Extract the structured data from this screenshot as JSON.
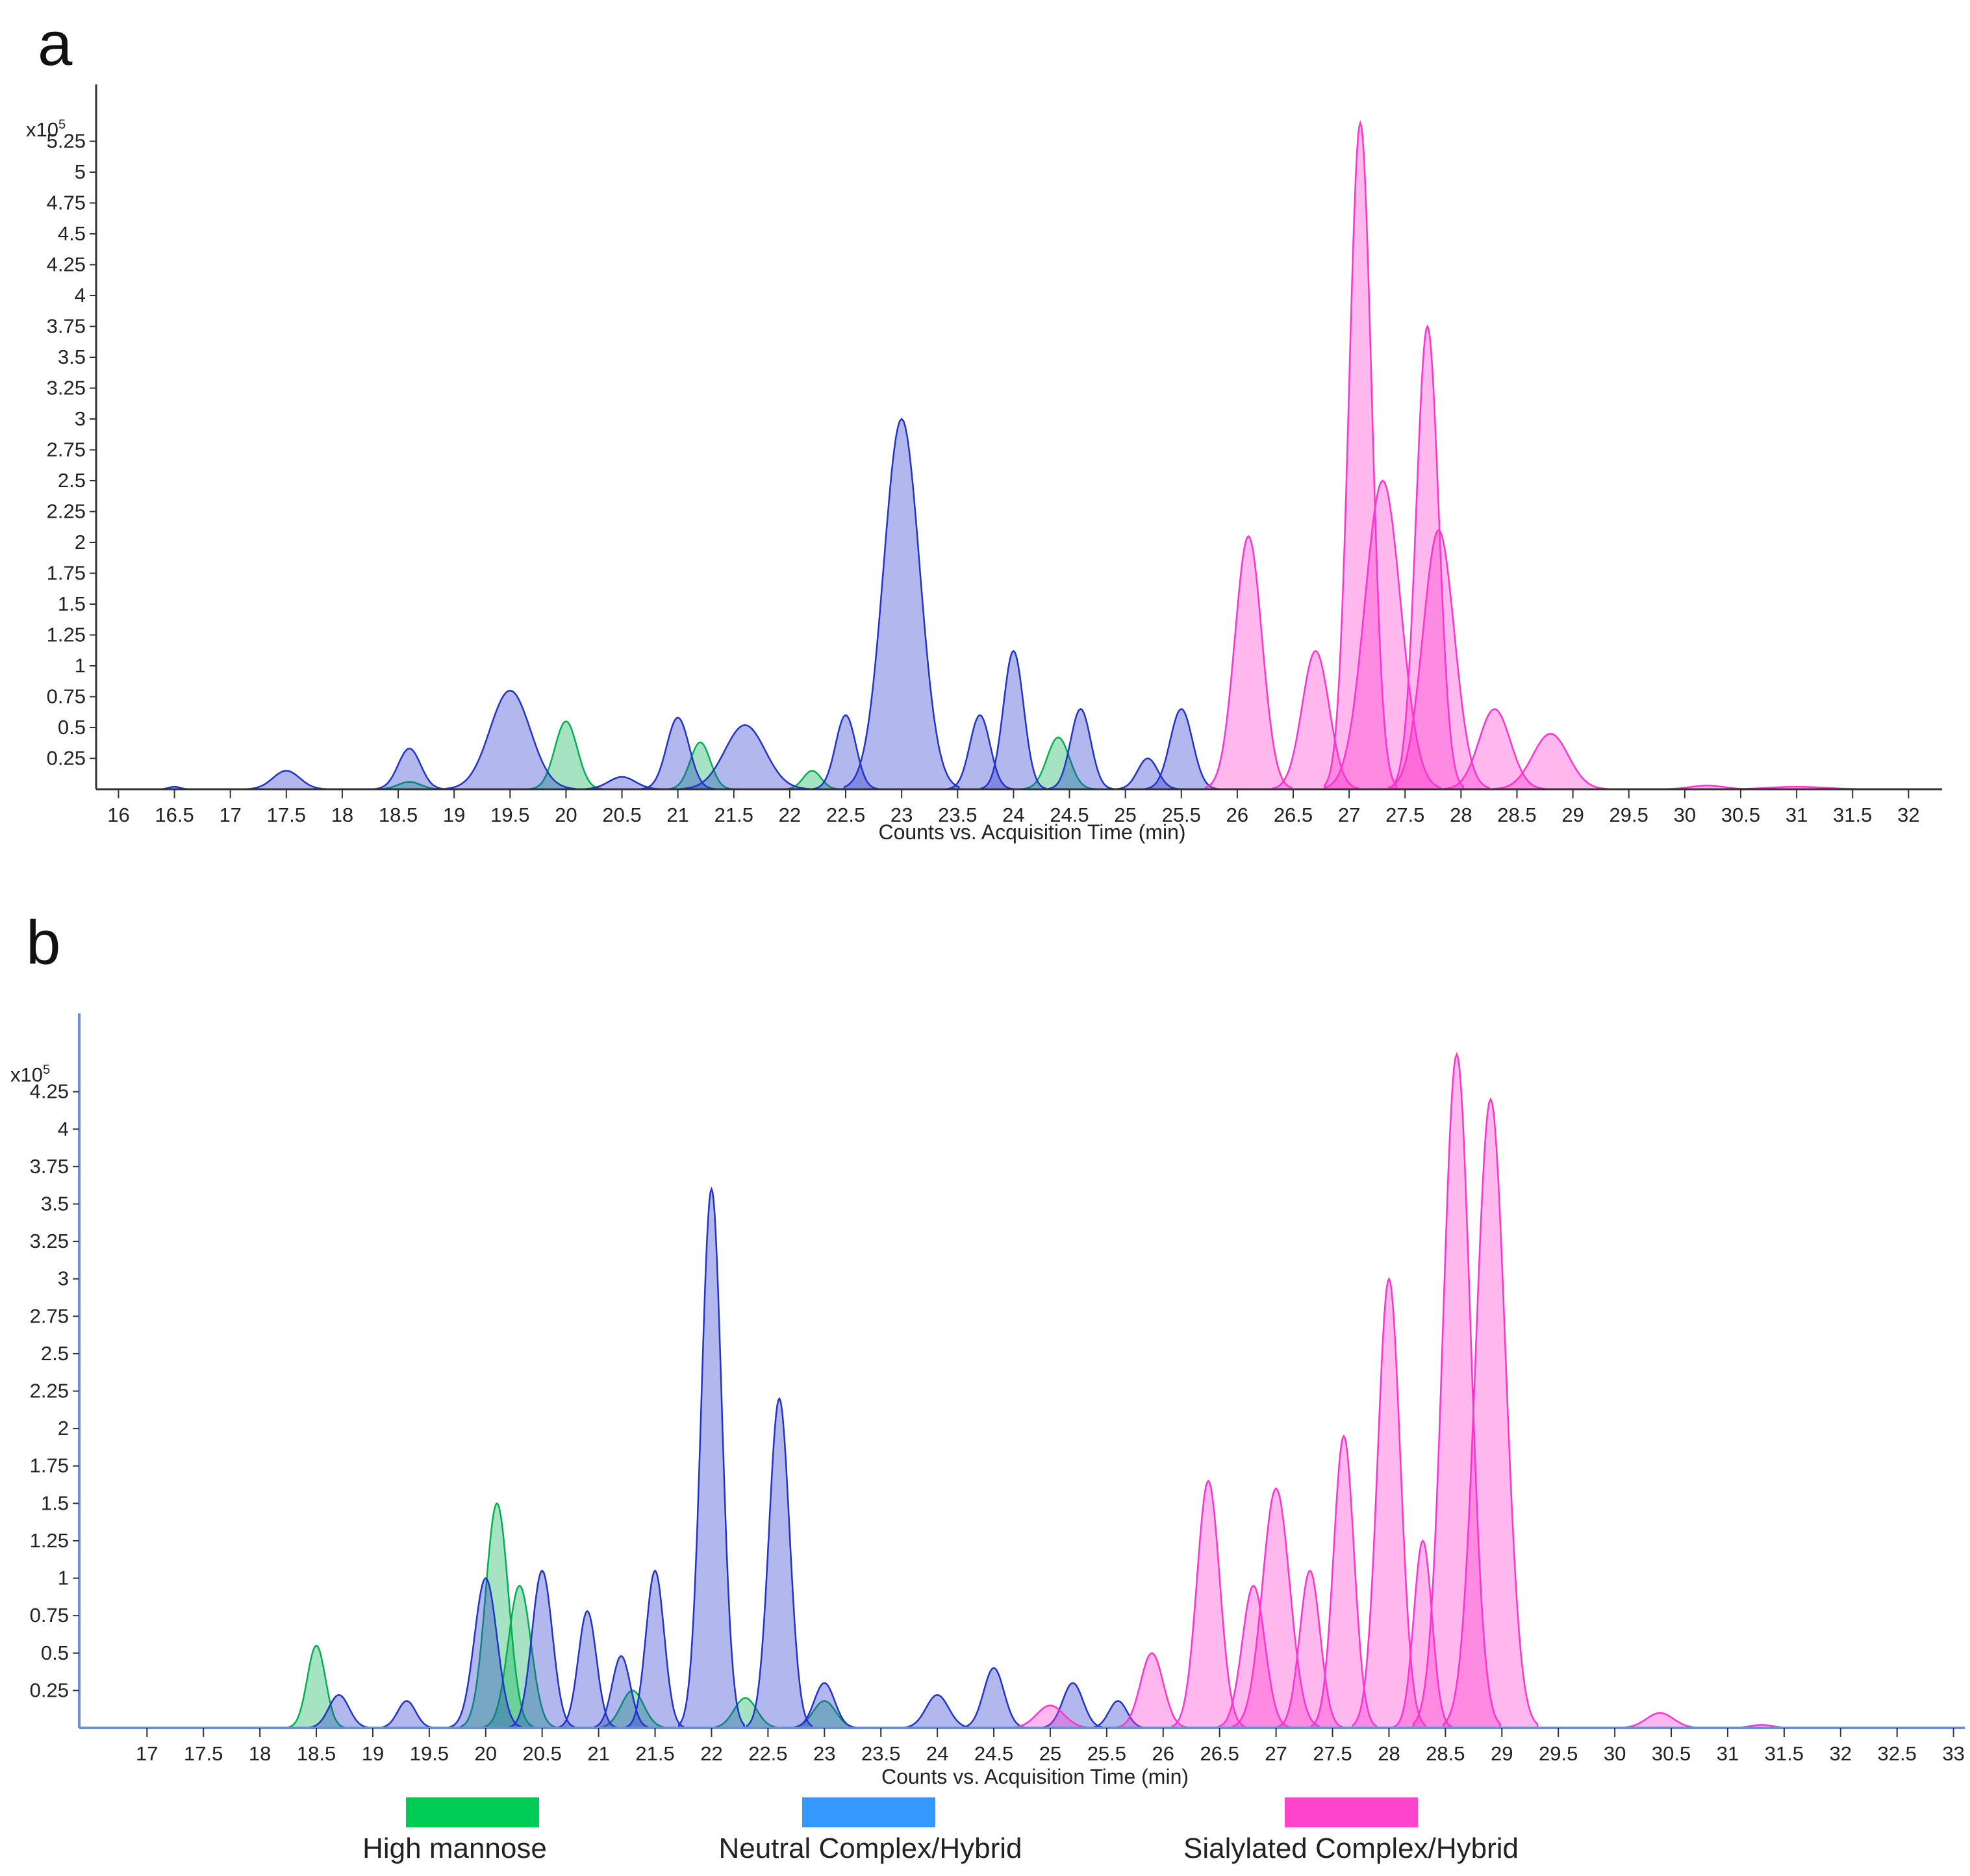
{
  "figure": {
    "panel_a_label": "a",
    "panel_b_label": "b",
    "legend": [
      {
        "label": "High mannose",
        "color": "#00cc55"
      },
      {
        "label": "Neutral Complex/Hybrid",
        "color": "#3399ff"
      },
      {
        "label": "Sialylated Complex/Hybrid",
        "color": "#ff44cc"
      }
    ]
  },
  "chart_data": [
    {
      "type": "area",
      "panel": "a",
      "xlabel": "Counts vs. Acquisition Time (min)",
      "ylabel": "",
      "y_multiplier": "x10",
      "y_multiplier_exp": "5",
      "xlim": [
        15.8,
        32.3
      ],
      "ylim": [
        0,
        5.5
      ],
      "xticks": [
        "16",
        "16.5",
        "17",
        "17.5",
        "18",
        "18.5",
        "19",
        "19.5",
        "20",
        "20.5",
        "21",
        "21.5",
        "22",
        "22.5",
        "23",
        "23.5",
        "24",
        "24.5",
        "25",
        "25.5",
        "26",
        "26.5",
        "27",
        "27.5",
        "28",
        "28.5",
        "29",
        "29.5",
        "30",
        "30.5",
        "31",
        "31.5",
        "32"
      ],
      "yticks": [
        "0.25",
        "0.5",
        "0.75",
        "1",
        "1.25",
        "1.5",
        "1.75",
        "2",
        "2.25",
        "2.5",
        "2.75",
        "3",
        "3.25",
        "3.5",
        "3.75",
        "4",
        "4.25",
        "4.5",
        "4.75",
        "5",
        "5.25"
      ],
      "series": [
        {
          "name": "High mannose",
          "color": "#00b050",
          "peaks": [
            [
              20.0,
              0.55,
              0.1
            ],
            [
              21.2,
              0.38,
              0.09
            ],
            [
              22.2,
              0.15,
              0.08
            ],
            [
              24.4,
              0.42,
              0.1
            ],
            [
              18.6,
              0.06,
              0.1
            ]
          ]
        },
        {
          "name": "Neutral Complex/Hybrid",
          "color": "#2233cc",
          "peaks": [
            [
              16.5,
              0.02,
              0.05
            ],
            [
              17.5,
              0.15,
              0.12
            ],
            [
              18.6,
              0.33,
              0.1
            ],
            [
              19.5,
              0.8,
              0.18
            ],
            [
              20.5,
              0.1,
              0.12
            ],
            [
              21.0,
              0.58,
              0.1
            ],
            [
              21.6,
              0.52,
              0.18
            ],
            [
              22.5,
              0.6,
              0.09
            ],
            [
              23.0,
              3.0,
              0.16
            ],
            [
              23.7,
              0.6,
              0.09
            ],
            [
              24.0,
              1.12,
              0.09
            ],
            [
              24.6,
              0.65,
              0.09
            ],
            [
              25.2,
              0.25,
              0.09
            ],
            [
              25.5,
              0.65,
              0.1
            ]
          ]
        },
        {
          "name": "Sialylated Complex/Hybrid",
          "color": "#ff33cc",
          "peaks": [
            [
              26.1,
              2.05,
              0.12
            ],
            [
              26.7,
              1.12,
              0.12
            ],
            [
              27.1,
              5.4,
              0.1
            ],
            [
              27.3,
              2.5,
              0.16
            ],
            [
              27.7,
              3.75,
              0.1
            ],
            [
              27.8,
              2.1,
              0.14
            ],
            [
              28.3,
              0.65,
              0.14
            ],
            [
              28.8,
              0.45,
              0.16
            ],
            [
              30.2,
              0.03,
              0.15
            ],
            [
              31.0,
              0.02,
              0.25
            ]
          ]
        }
      ]
    },
    {
      "type": "area",
      "panel": "b",
      "xlabel": "Counts vs. Acquisition Time (min)",
      "ylabel": "",
      "y_multiplier": "x10",
      "y_multiplier_exp": "5",
      "xlim": [
        16.4,
        33.1
      ],
      "ylim": [
        0,
        4.6
      ],
      "xticks": [
        "17",
        "17.5",
        "18",
        "18.5",
        "19",
        "19.5",
        "20",
        "20.5",
        "21",
        "21.5",
        "22",
        "22.5",
        "23",
        "23.5",
        "24",
        "24.5",
        "25",
        "25.5",
        "26",
        "26.5",
        "27",
        "27.5",
        "28",
        "28.5",
        "29",
        "29.5",
        "30",
        "30.5",
        "31",
        "31.5",
        "32",
        "32.5",
        "33"
      ],
      "yticks": [
        "0.25",
        "0.5",
        "0.75",
        "1",
        "1.25",
        "1.5",
        "1.75",
        "2",
        "2.25",
        "2.5",
        "2.75",
        "3",
        "3.25",
        "3.5",
        "3.75",
        "4",
        "4.25"
      ],
      "series": [
        {
          "name": "High mannose",
          "color": "#00b050",
          "peaks": [
            [
              18.5,
              0.55,
              0.08
            ],
            [
              20.1,
              1.5,
              0.1
            ],
            [
              20.3,
              0.95,
              0.1
            ],
            [
              21.3,
              0.25,
              0.1
            ],
            [
              22.3,
              0.2,
              0.1
            ],
            [
              23.0,
              0.18,
              0.1
            ]
          ]
        },
        {
          "name": "Neutral Complex/Hybrid",
          "color": "#2233cc",
          "peaks": [
            [
              18.7,
              0.22,
              0.09
            ],
            [
              19.3,
              0.18,
              0.08
            ],
            [
              20.0,
              1.0,
              0.1
            ],
            [
              20.5,
              1.05,
              0.09
            ],
            [
              20.9,
              0.78,
              0.08
            ],
            [
              21.2,
              0.48,
              0.08
            ],
            [
              21.5,
              1.05,
              0.08
            ],
            [
              22.0,
              3.6,
              0.09
            ],
            [
              22.6,
              2.2,
              0.09
            ],
            [
              23.0,
              0.3,
              0.09
            ],
            [
              24.0,
              0.22,
              0.1
            ],
            [
              24.5,
              0.4,
              0.09
            ],
            [
              25.2,
              0.3,
              0.09
            ],
            [
              25.6,
              0.18,
              0.08
            ]
          ]
        },
        {
          "name": "Sialylated Complex/Hybrid",
          "color": "#ff33cc",
          "peaks": [
            [
              25.0,
              0.15,
              0.12
            ],
            [
              25.9,
              0.5,
              0.1
            ],
            [
              26.4,
              1.65,
              0.1
            ],
            [
              26.8,
              0.95,
              0.1
            ],
            [
              27.0,
              1.6,
              0.12
            ],
            [
              27.3,
              1.05,
              0.09
            ],
            [
              27.6,
              1.95,
              0.09
            ],
            [
              28.0,
              3.0,
              0.1
            ],
            [
              28.3,
              1.25,
              0.08
            ],
            [
              28.6,
              4.5,
              0.12
            ],
            [
              28.9,
              4.2,
              0.13
            ],
            [
              30.4,
              0.1,
              0.12
            ],
            [
              31.3,
              0.02,
              0.1
            ]
          ]
        }
      ]
    }
  ]
}
